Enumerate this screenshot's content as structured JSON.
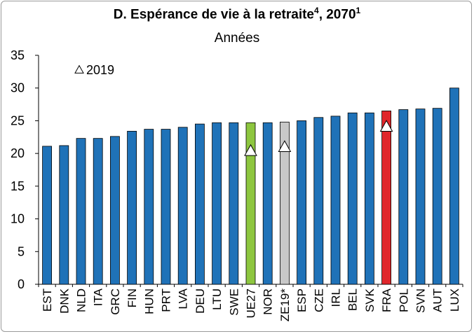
{
  "chart_data": {
    "type": "bar",
    "title": "D. Espérance de vie à la retraite",
    "title_sup1": "4",
    "title_year": ", 2070",
    "title_sup2": "1",
    "subtitle": "Années",
    "ylim": [
      0,
      35
    ],
    "yticks": [
      0,
      5,
      10,
      15,
      20,
      25,
      30,
      35
    ],
    "grid": false,
    "legend": {
      "position": "top-left",
      "label": "2019",
      "marker": "open-triangle"
    },
    "categories": [
      "EST",
      "DNK",
      "NLD",
      "ITA",
      "GRC",
      "FIN",
      "HUN",
      "PRT",
      "LVA",
      "DEU",
      "LTU",
      "SWE",
      "UE27",
      "NOR",
      "ZE19*",
      "ESP",
      "CZE",
      "IRL",
      "BEL",
      "SVK",
      "FRA",
      "POL",
      "SVN",
      "AUT",
      "LUX"
    ],
    "series": [
      {
        "values": [
          21.1,
          21.2,
          22.3,
          22.3,
          22.6,
          23.4,
          23.7,
          23.7,
          24.0,
          24.5,
          24.7,
          24.7,
          24.7,
          24.7,
          24.8,
          25.0,
          25.5,
          25.7,
          26.2,
          26.2,
          26.5,
          26.7,
          26.8,
          26.9,
          30.0
        ]
      },
      {
        "name": "2019",
        "points": [
          {
            "category": "UE27",
            "value": 20.5
          },
          {
            "category": "ZE19*",
            "value": 21.1
          },
          {
            "category": "FRA",
            "value": 24.2
          }
        ]
      }
    ],
    "colors": {
      "default": "#1f72b8",
      "UE27": "#8dc63f",
      "ZE19*": "#c8c8c8",
      "FRA": "#e0262b",
      "edge": "#000000"
    }
  }
}
